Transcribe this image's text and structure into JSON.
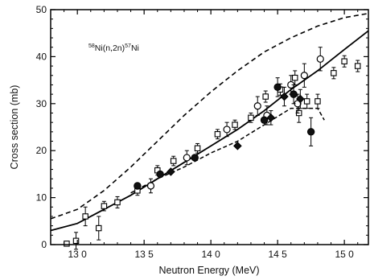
{
  "chart_data": {
    "type": "scatter",
    "title": "",
    "xlabel": "Neutron Energy (MeV)",
    "ylabel": "Cross section (mb)",
    "xlim": [
      12.8,
      15.18
    ],
    "ylim": [
      0,
      50
    ],
    "xticks": [
      13.0,
      13.5,
      14.0,
      14.5,
      15.0
    ],
    "xtick_labels": [
      "13 0",
      "13 5",
      "14 0",
      "14 5",
      "15 0"
    ],
    "yticks": [
      0,
      10,
      20,
      30,
      40,
      50
    ],
    "ytick_labels": [
      "0",
      "10",
      "20",
      "30",
      "40",
      "50"
    ],
    "grid": false,
    "annotation": {
      "prefix_mass": "58",
      "main": "Ni(n,2n)",
      "suffix_mass": "57",
      "suffix": "Ni"
    },
    "curves": [
      {
        "style": "dashed-long",
        "points": [
          [
            12.8,
            5.5
          ],
          [
            13.0,
            7.5
          ],
          [
            13.2,
            11.5
          ],
          [
            13.4,
            16.5
          ],
          [
            13.6,
            22
          ],
          [
            13.8,
            27.5
          ],
          [
            14.0,
            32.5
          ],
          [
            14.2,
            37
          ],
          [
            14.4,
            41
          ],
          [
            14.6,
            44
          ],
          [
            14.8,
            46.5
          ],
          [
            15.0,
            48.3
          ],
          [
            15.18,
            49.2
          ]
        ]
      },
      {
        "style": "solid",
        "points": [
          [
            12.8,
            3
          ],
          [
            13.0,
            4.5
          ],
          [
            13.2,
            7.5
          ],
          [
            13.4,
            10.5
          ],
          [
            13.6,
            14
          ],
          [
            13.8,
            17.5
          ],
          [
            14.0,
            21
          ],
          [
            14.2,
            24.5
          ],
          [
            14.4,
            28.5
          ],
          [
            14.6,
            33
          ],
          [
            14.8,
            37
          ],
          [
            15.0,
            41.5
          ],
          [
            15.18,
            45.5
          ]
        ]
      },
      {
        "style": "dashed-short",
        "points": [
          [
            13.4,
            11
          ],
          [
            13.6,
            14
          ],
          [
            13.8,
            16.5
          ],
          [
            14.0,
            19.5
          ],
          [
            14.2,
            22
          ],
          [
            14.4,
            25.5
          ],
          [
            14.6,
            29
          ],
          [
            14.8,
            29
          ],
          [
            14.85,
            26.5
          ]
        ]
      }
    ],
    "series": [
      {
        "marker": "open-square",
        "points": [
          {
            "x": 12.92,
            "y": 0.2,
            "err": 0
          },
          {
            "x": 12.99,
            "y": 0.8,
            "err": 1.8
          },
          {
            "x": 13.06,
            "y": 6.0,
            "err": 2.0
          },
          {
            "x": 13.16,
            "y": 3.5,
            "err": 2.5
          },
          {
            "x": 13.2,
            "y": 8.2,
            "err": 1.0
          },
          {
            "x": 13.3,
            "y": 9.0,
            "err": 1.2
          },
          {
            "x": 13.45,
            "y": 11.5,
            "err": 1.0
          },
          {
            "x": 13.6,
            "y": 15.8,
            "err": 1.0
          },
          {
            "x": 13.72,
            "y": 17.8,
            "err": 1.0
          },
          {
            "x": 13.9,
            "y": 20.5,
            "err": 1.0
          },
          {
            "x": 14.05,
            "y": 23.5,
            "err": 1.0
          },
          {
            "x": 14.18,
            "y": 25.5,
            "err": 1.0
          },
          {
            "x": 14.3,
            "y": 27.0,
            "err": 1.0
          },
          {
            "x": 14.41,
            "y": 31.5,
            "err": 1.2
          },
          {
            "x": 14.52,
            "y": 33.0,
            "err": 1.2
          },
          {
            "x": 14.63,
            "y": 35.5,
            "err": 1.5
          },
          {
            "x": 14.72,
            "y": 30.5,
            "err": 1.5
          },
          {
            "x": 14.8,
            "y": 30.5,
            "err": 1.5
          },
          {
            "x": 14.92,
            "y": 36.5,
            "err": 1.2
          },
          {
            "x": 15.0,
            "y": 39.0,
            "err": 1.2
          },
          {
            "x": 15.1,
            "y": 38.0,
            "err": 1.2
          },
          {
            "x": 14.66,
            "y": 28.0,
            "err": 2.0
          }
        ]
      },
      {
        "marker": "open-circle",
        "points": [
          {
            "x": 13.55,
            "y": 12.5,
            "err": 1.5
          },
          {
            "x": 13.82,
            "y": 18.5,
            "err": 1.5
          },
          {
            "x": 14.12,
            "y": 24.5,
            "err": 1.5
          },
          {
            "x": 14.35,
            "y": 29.5,
            "err": 2.0
          },
          {
            "x": 14.42,
            "y": 27.5,
            "err": 2.0
          },
          {
            "x": 14.6,
            "y": 34.0,
            "err": 2.0
          },
          {
            "x": 14.7,
            "y": 36.0,
            "err": 2.5
          },
          {
            "x": 14.82,
            "y": 39.5,
            "err": 2.5
          },
          {
            "x": 14.65,
            "y": 30.0,
            "err": 2.0
          }
        ]
      },
      {
        "marker": "filled-circle",
        "points": [
          {
            "x": 13.45,
            "y": 12.5,
            "err": 0
          },
          {
            "x": 13.62,
            "y": 15.0,
            "err": 0
          },
          {
            "x": 13.88,
            "y": 18.5,
            "err": 0
          },
          {
            "x": 14.4,
            "y": 26.5,
            "err": 0
          },
          {
            "x": 14.5,
            "y": 33.5,
            "err": 2.0
          },
          {
            "x": 14.62,
            "y": 32.0,
            "err": 2.0
          },
          {
            "x": 14.75,
            "y": 24.0,
            "err": 3.0
          }
        ]
      },
      {
        "marker": "filled-diamond",
        "points": [
          {
            "x": 13.7,
            "y": 15.5,
            "err": 0
          },
          {
            "x": 14.2,
            "y": 21.0,
            "err": 0
          },
          {
            "x": 14.45,
            "y": 27.0,
            "err": 1.5
          },
          {
            "x": 14.55,
            "y": 31.5,
            "err": 2.0
          },
          {
            "x": 14.67,
            "y": 31.0,
            "err": 2.0
          }
        ]
      }
    ]
  }
}
